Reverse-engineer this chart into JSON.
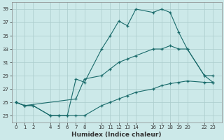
{
  "xlabel": "Humidex (Indice chaleur)",
  "background_color": "#cce9e9",
  "grid_color": "#aacccc",
  "line_color": "#1a6b6b",
  "ylim": [
    22,
    40
  ],
  "yticks": [
    23,
    25,
    27,
    29,
    31,
    33,
    35,
    37,
    39
  ],
  "xticks": [
    0,
    1,
    2,
    4,
    5,
    6,
    7,
    8,
    10,
    11,
    12,
    13,
    14,
    16,
    17,
    18,
    19,
    20,
    22,
    23
  ],
  "xlim": [
    -0.5,
    24
  ],
  "curve_top_x": [
    0,
    1,
    2,
    4,
    5,
    6,
    7,
    8,
    10,
    11,
    12,
    13,
    14,
    16,
    17,
    18,
    19,
    20,
    22,
    23
  ],
  "curve_top_y": [
    25.0,
    24.5,
    24.5,
    23.0,
    23.0,
    23.0,
    28.5,
    28.0,
    33.0,
    35.0,
    37.2,
    36.5,
    39.0,
    38.5,
    39.0,
    38.5,
    35.5,
    33.0,
    29.0,
    28.0
  ],
  "curve_mid_x": [
    0,
    1,
    7,
    8,
    10,
    11,
    12,
    13,
    14,
    16,
    17,
    18,
    19,
    20,
    22,
    23
  ],
  "curve_mid_y": [
    25.0,
    24.5,
    25.5,
    28.5,
    29.0,
    30.0,
    31.0,
    31.5,
    32.0,
    33.0,
    33.0,
    33.5,
    33.0,
    33.0,
    29.0,
    29.0
  ],
  "curve_bot_x": [
    0,
    1,
    2,
    4,
    5,
    6,
    7,
    8,
    10,
    11,
    12,
    13,
    14,
    16,
    17,
    18,
    19,
    20,
    22,
    23
  ],
  "curve_bot_y": [
    25.0,
    24.5,
    24.5,
    23.0,
    23.0,
    23.0,
    23.0,
    23.0,
    24.5,
    25.0,
    25.5,
    26.0,
    26.5,
    27.0,
    27.5,
    27.8,
    28.0,
    28.2,
    28.0,
    28.0
  ]
}
